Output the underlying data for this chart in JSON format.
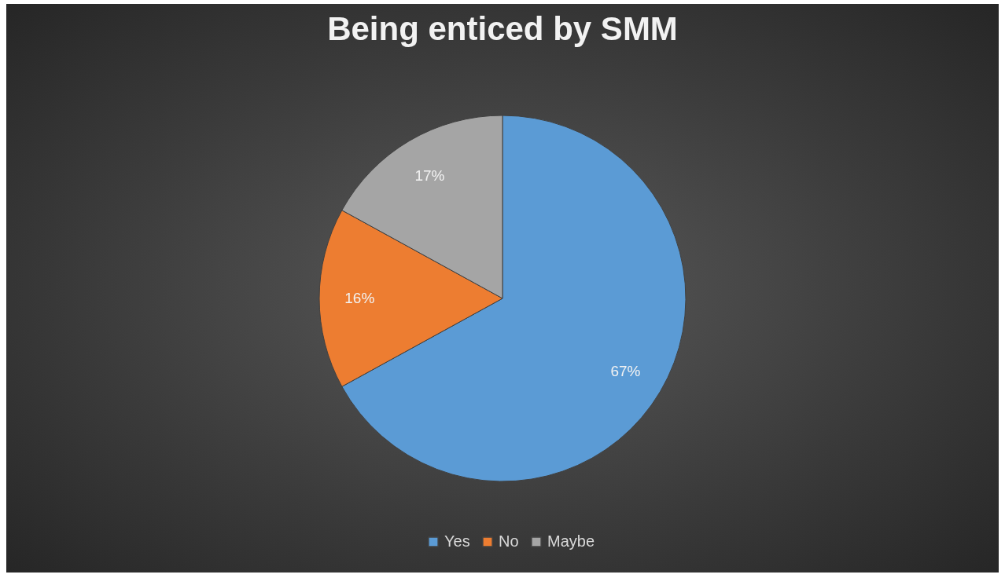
{
  "chart_data": {
    "type": "pie",
    "title": "Being enticed by SMM",
    "categories": [
      "Yes",
      "No",
      "Maybe"
    ],
    "values": [
      67,
      16,
      17
    ],
    "colors": [
      "#5b9bd5",
      "#ed7d31",
      "#a5a5a5"
    ],
    "value_labels": [
      "67%",
      "16%",
      "17%"
    ],
    "legend": "bottom"
  }
}
